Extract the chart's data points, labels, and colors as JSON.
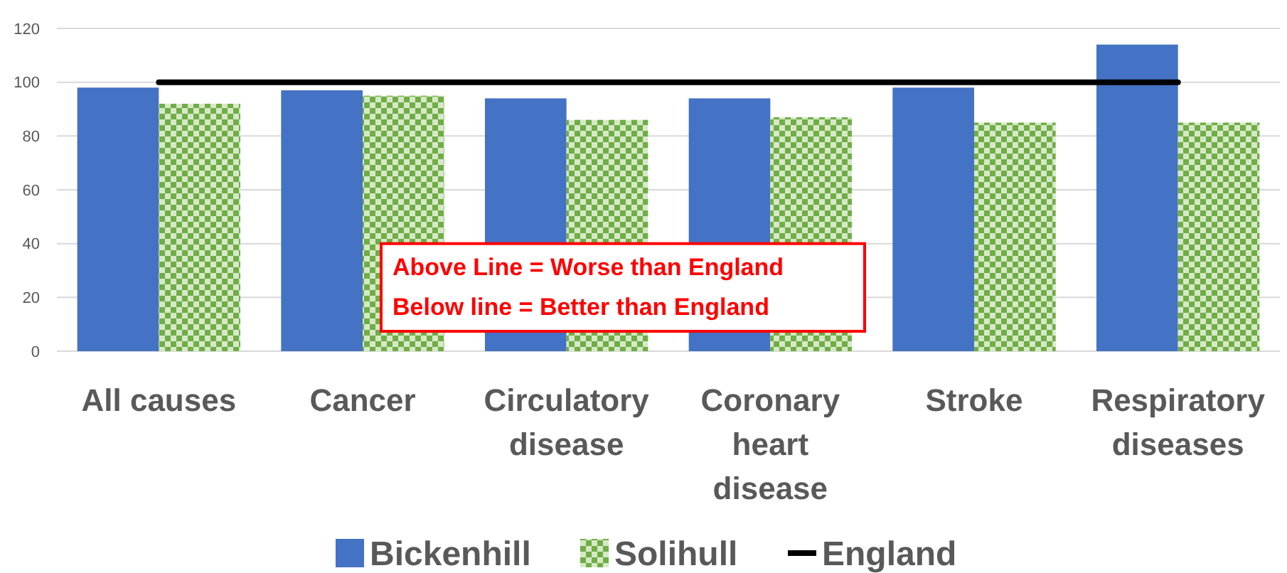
{
  "chart_data": {
    "type": "bar",
    "categories": [
      "All causes",
      "Cancer",
      "Circulatory disease",
      "Coronary heart disease",
      "Stroke",
      "Respiratory diseases"
    ],
    "series": [
      {
        "name": "Bickenhill",
        "color": "#4472c4",
        "values": [
          98,
          97,
          94,
          94,
          98,
          114
        ]
      },
      {
        "name": "Solihull",
        "color": "#70ad47",
        "values": [
          92,
          95,
          86,
          87,
          85,
          85
        ]
      },
      {
        "name": "England",
        "type": "line",
        "color": "#000000",
        "values": [
          100,
          100,
          100,
          100,
          100,
          100
        ]
      }
    ],
    "ylim": [
      0,
      120
    ],
    "yticks": [
      0,
      20,
      40,
      60,
      80,
      100,
      120
    ],
    "grid": "y",
    "legend": "bottom",
    "marker": "none",
    "annotations": [
      "Above Line = Worse than England",
      "Below line = Better than England"
    ]
  }
}
